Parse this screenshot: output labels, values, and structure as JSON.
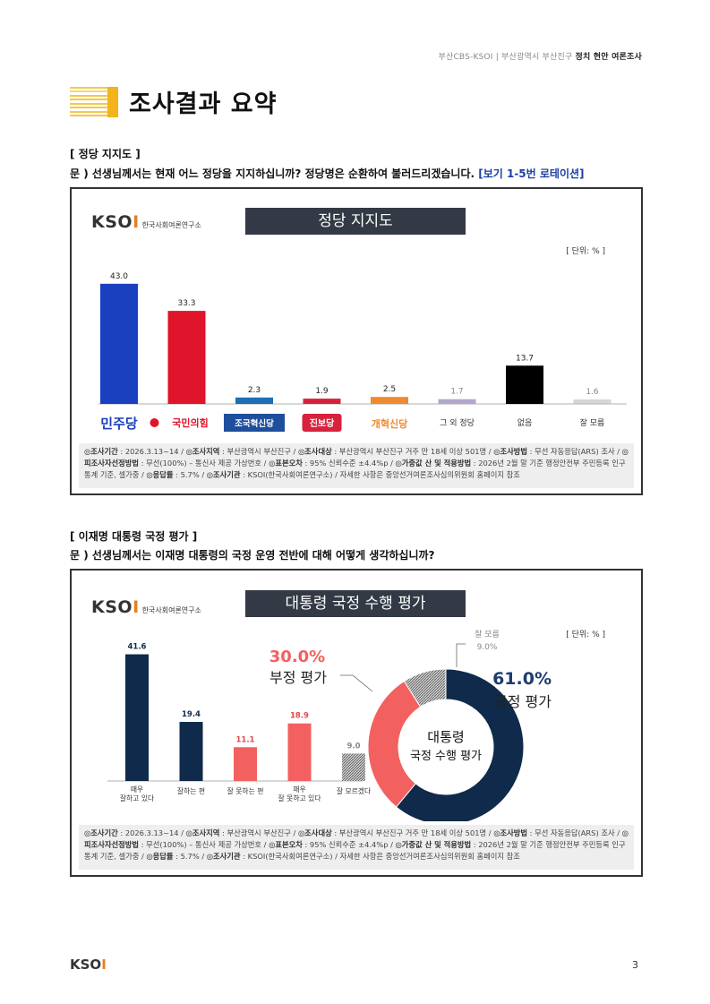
{
  "header": {
    "org": "부산CBS-KSOI",
    "region": "부산광역시 부산진구",
    "survey": "정치 현안 여론조사"
  },
  "section_title": "조사결과 요약",
  "q1": {
    "label": "[ 정당 지지도 ]",
    "question": "문 )  선생님께서는 현재 어느 정당을 지지하십니까? 정당명은 순환하여 불러드리겠습니다.",
    "note": "[보기 1-5번 로테이션]"
  },
  "q2": {
    "label": "[ 이재명 대통령 국정 평가 ]",
    "question": "문 )  선생님께서는 이재명 대통령의 국정 운영 전반에 대해 어떻게 생각하십니까?"
  },
  "logo": {
    "text": "KSOI",
    "sub": "한국사회여론연구소"
  },
  "panel1": {
    "title": "정당 지지도",
    "unit": "[ 단위: % ]"
  },
  "panel2": {
    "title": "대통령 국정 수행 평가",
    "unit": "[ 단위: % ]"
  },
  "footnote": {
    "k1": "◎조사기간",
    "v1": " : 2026.3.13~14 / ",
    "k2": "◎조사지역",
    "v2": " : 부산광역시 부산진구 / ",
    "k3": "◎조사대상",
    "v3": " : 부산광역시 부산진구 거주 만 18세 이상 501명 / ",
    "k4": "◎조사방법",
    "v4": " : 무선 자동응답(ARS) 조사 / ",
    "k5": "◎피조사자선정방법",
    "v5": " : 무선(100%) – 통신사 제공 가상번호 / ",
    "k6": "◎표본오차",
    "v6": " : 95% 신뢰수준 ±4.4%p / ",
    "k7": "◎가중값 산 및 적용방법",
    "v7": " : 2026년 2월 말 기준 행정안전부 주민등록 인구통계 기준, 셀가중 / ",
    "k8": "◎응답률",
    "v8": " : 5.7% / ",
    "k9": "◎조사기관",
    "v9": " : KSOI(한국사회여론연구소) / ",
    "v10": "자세한 사항은 중앙선거여론조사심의위원회 홈페이지 참조"
  },
  "chart_data": [
    {
      "type": "bar",
      "title": "정당 지지도",
      "categories": [
        "민주당",
        "국민의힘",
        "조국혁신당",
        "진보당",
        "개혁신당",
        "그 외 정당",
        "없음",
        "잘 모름"
      ],
      "values": [
        43.0,
        33.3,
        2.3,
        1.9,
        2.5,
        1.7,
        13.7,
        1.6
      ],
      "value_labels": [
        "43.0",
        "33.3",
        "2.3",
        "1.9",
        "2.5",
        "1.7",
        "13.7",
        "1.6"
      ],
      "colors": [
        "#1a3fbf",
        "#e0142b",
        "#1f6fb5",
        "#d8223b",
        "#f08a2e",
        "#b3a6cc",
        "#000000",
        "#bbbbbb"
      ],
      "ylim": [
        0,
        50
      ]
    },
    {
      "type": "bar",
      "title": "대통령 국정 수행 평가",
      "categories": [
        "매우\n잘하고 있다",
        "잘하는 편",
        "잘 못하는 편",
        "매우\n잘 못하고 있다",
        "잘 모르겠다"
      ],
      "values": [
        41.6,
        19.4,
        11.1,
        18.9,
        9.0
      ],
      "value_labels": [
        "41.6",
        "19.4",
        "11.1",
        "18.9",
        "9.0"
      ],
      "colors": [
        "#0f2a4a",
        "#0f2a4a",
        "#f26160",
        "#f26160",
        "#999999"
      ],
      "ylim": [
        0,
        50
      ]
    },
    {
      "type": "pie",
      "center_label": [
        "대통령",
        "국정 수행 평가"
      ],
      "slices": [
        {
          "label": "긍정 평가",
          "value": 61.0,
          "value_label": "61.0%",
          "color": "#0f2a4a"
        },
        {
          "label": "부정 평가",
          "value": 30.0,
          "value_label": "30.0%",
          "color": "#f26160"
        },
        {
          "label": "잘 모름",
          "value": 9.0,
          "value_label": "9.0%",
          "color": "#aaaaaa"
        }
      ]
    }
  ],
  "page_number": "3"
}
